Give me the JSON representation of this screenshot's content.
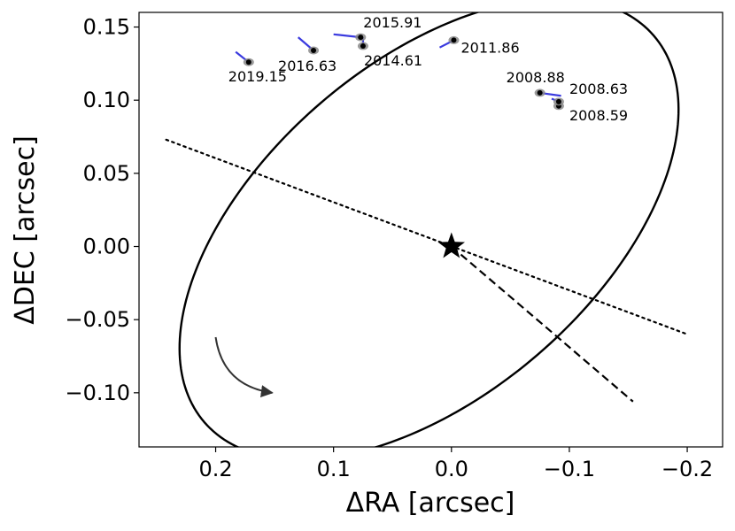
{
  "chart_data": {
    "type": "scatter",
    "title": "",
    "xlabel": "ΔRA [arcsec]",
    "ylabel": "ΔDEC [arcsec]",
    "xlim": [
      0.265,
      -0.23
    ],
    "ylim": [
      -0.137,
      0.16
    ],
    "x_inverted": true,
    "grid": false,
    "xticks": [
      {
        "value": 0.2,
        "label": "0.2"
      },
      {
        "value": 0.1,
        "label": "0.1"
      },
      {
        "value": 0.0,
        "label": "0.0"
      },
      {
        "value": -0.1,
        "label": "−0.1"
      },
      {
        "value": -0.2,
        "label": "−0.2"
      }
    ],
    "yticks": [
      {
        "value": 0.15,
        "label": "0.15"
      },
      {
        "value": 0.1,
        "label": "0.10"
      },
      {
        "value": 0.05,
        "label": "0.05"
      },
      {
        "value": 0.0,
        "label": "0.00"
      },
      {
        "value": -0.05,
        "label": "−0.05"
      },
      {
        "value": -0.1,
        "label": "−0.10"
      }
    ],
    "star": {
      "ra": 0.0,
      "dec": 0.0
    },
    "orbit": {
      "center_ra": 0.019,
      "center_dec": 0.012,
      "semi_major": 0.234,
      "semi_minor": 0.122,
      "rotation_deg": -30
    },
    "line_of_nodes": {
      "start": [
        0.242,
        0.073
      ],
      "end": [
        -0.2,
        -0.06
      ]
    },
    "periastron_line": {
      "start": [
        0.0,
        0.0
      ],
      "end": [
        -0.154,
        -0.106
      ]
    },
    "direction_arrow": {
      "start": [
        0.2,
        -0.062
      ],
      "end": [
        0.152,
        -0.1
      ]
    },
    "epochs": [
      {
        "label": "2008.59",
        "ra": -0.091,
        "dec": 0.096
      },
      {
        "label": "2008.63",
        "ra": -0.091,
        "dec": 0.099
      },
      {
        "label": "2008.88",
        "ra": -0.075,
        "dec": 0.105
      },
      {
        "label": "2011.86",
        "ra": -0.002,
        "dec": 0.141
      },
      {
        "label": "2014.61",
        "ra": 0.075,
        "dec": 0.137
      },
      {
        "label": "2015.91",
        "ra": 0.077,
        "dec": 0.143
      },
      {
        "label": "2016.63",
        "ra": 0.117,
        "dec": 0.134
      },
      {
        "label": "2019.15",
        "ra": 0.172,
        "dec": 0.126
      }
    ],
    "residual_lines": [
      {
        "from": [
          -0.091,
          0.096
        ],
        "to": [
          -0.091,
          0.094
        ]
      },
      {
        "from": [
          -0.091,
          0.099
        ],
        "to": [
          -0.085,
          0.101
        ]
      },
      {
        "from": [
          -0.075,
          0.105
        ],
        "to": [
          -0.093,
          0.103
        ]
      },
      {
        "from": [
          -0.002,
          0.141
        ],
        "to": [
          0.01,
          0.136
        ]
      },
      {
        "from": [
          0.075,
          0.137
        ],
        "to": [
          0.075,
          0.143
        ]
      },
      {
        "from": [
          0.077,
          0.143
        ],
        "to": [
          0.1,
          0.145
        ]
      },
      {
        "from": [
          0.117,
          0.134
        ],
        "to": [
          0.13,
          0.143
        ]
      },
      {
        "from": [
          0.172,
          0.126
        ],
        "to": [
          0.183,
          0.133
        ]
      }
    ],
    "colors": {
      "orbit": "#000000",
      "residual": "#3b3bdf",
      "point": "#000000",
      "point_halo": "#8a8a8a",
      "arrow": "#333333"
    }
  }
}
